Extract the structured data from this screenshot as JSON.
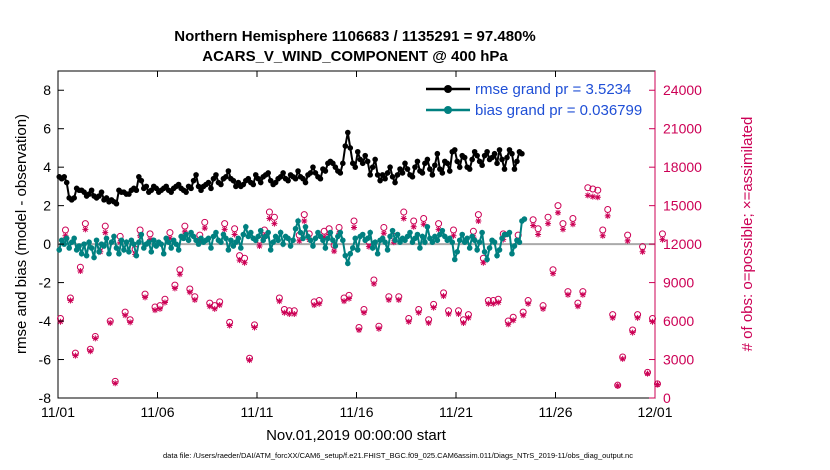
{
  "chart_data": {
    "type": "line",
    "title_line1": "Northern Hemisphere 1106683 / 1135291 = 97.480%",
    "title_line2": "ACARS_V_WIND_COMPONENT @ 400 hPa",
    "xlabel": "Nov.01,2019 00:00:00 start",
    "ylabel": "rmse and bias (model - observation)",
    "y2label": "# of obs: o=possible; ×=assimilated",
    "xlim": [
      0,
      30
    ],
    "ylim": [
      -8,
      9
    ],
    "y2lim": [
      0,
      25500
    ],
    "x_ticks": [
      0,
      5,
      10,
      15,
      20,
      25,
      30
    ],
    "x_tick_labels": [
      "11/01",
      "11/06",
      "11/11",
      "11/16",
      "11/21",
      "11/26",
      "12/01"
    ],
    "y_ticks": [
      -8,
      -6,
      -4,
      -2,
      0,
      2,
      4,
      6,
      8
    ],
    "y_tick_labels": [
      "-8",
      "-6",
      "-4",
      "-2",
      "0",
      "2",
      "4",
      "6",
      "8"
    ],
    "y2_ticks": [
      0,
      3000,
      6000,
      9000,
      12000,
      15000,
      18000,
      21000,
      24000
    ],
    "y2_tick_labels": [
      "0",
      "3000",
      "6000",
      "9000",
      "12000",
      "15000",
      "18000",
      "21000",
      "24000"
    ],
    "legend": [
      {
        "label": "rmse grand pr = 3.5234",
        "color": "#000000"
      },
      {
        "label": "bias grand pr = 0.036799",
        "color": "#008080"
      }
    ],
    "series": [
      {
        "name": "rmse",
        "color": "#000000",
        "step_days": 0.125,
        "values": [
          3.5,
          3.4,
          3.5,
          3.2,
          2.4,
          2.3,
          2.4,
          2.9,
          2.8,
          2.8,
          2.7,
          2.5,
          2.6,
          2.8,
          2.5,
          2.4,
          2.5,
          2.7,
          2.3,
          2.4,
          2.2,
          2.3,
          2.2,
          2.1,
          2.8,
          2.7,
          2.7,
          2.6,
          2.6,
          2.8,
          2.9,
          2.8,
          3.5,
          3.3,
          2.9,
          3.0,
          2.7,
          2.8,
          3.0,
          2.9,
          2.7,
          2.8,
          2.9,
          3.0,
          2.8,
          2.7,
          2.9,
          3.0,
          3.1,
          2.9,
          2.8,
          2.7,
          3.0,
          2.9,
          3.3,
          3.6,
          3.0,
          2.8,
          3.0,
          3.1,
          3.2,
          2.9,
          3.4,
          3.6,
          3.2,
          3.1,
          3.4,
          3.5,
          3.8,
          3.4,
          3.3,
          3.0,
          3.2,
          3.0,
          3.1,
          3.3,
          3.4,
          3.2,
          3.1,
          3.6,
          3.4,
          3.2,
          3.5,
          3.6,
          3.7,
          3.3,
          3.1,
          3.2,
          3.4,
          3.5,
          3.7,
          3.4,
          3.3,
          3.6,
          3.5,
          3.4,
          3.8,
          3.5,
          3.4,
          3.2,
          3.6,
          3.7,
          4.0,
          3.7,
          3.5,
          3.4,
          3.9,
          3.8,
          4.2,
          4.3,
          4.2,
          4.0,
          3.8,
          3.7,
          4.2,
          5.1,
          5.8,
          5.0,
          4.2,
          4.0,
          4.8,
          4.4,
          4.2,
          4.6,
          4.3,
          3.6,
          4.0,
          4.4,
          3.6,
          3.3,
          3.6,
          3.4,
          3.7,
          4.0,
          3.5,
          3.2,
          3.6,
          3.9,
          3.7,
          4.2,
          3.9,
          3.6,
          3.5,
          4.0,
          4.3,
          3.8,
          3.7,
          4.2,
          4.4,
          3.9,
          3.6,
          4.1,
          4.7,
          3.9,
          3.7,
          4.3,
          4.2,
          3.8,
          4.8,
          4.9,
          4.3,
          4.0,
          4.6,
          4.5,
          4.0,
          3.9,
          4.4,
          4.8,
          4.6,
          4.3,
          4.1,
          4.6,
          4.8,
          4.4,
          4.5,
          4.7,
          4.2,
          4.9,
          4.4,
          3.9,
          4.5,
          4.9,
          4.7,
          3.9,
          4.3,
          4.8,
          4.7
        ]
      },
      {
        "name": "bias",
        "color": "#008080",
        "step_days": 0.125,
        "values": [
          -0.3,
          0.2,
          0.0,
          0.3,
          -0.2,
          0.1,
          0.3,
          -0.3,
          -0.1,
          -0.5,
          0.0,
          -0.6,
          0.1,
          -0.2,
          -0.7,
          0.2,
          -0.4,
          0.0,
          -0.1,
          0.3,
          -0.5,
          0.1,
          0.4,
          -0.2,
          -0.5,
          0.2,
          -0.3,
          0.1,
          -0.4,
          0.2,
          0.0,
          -0.6,
          0.1,
          0.5,
          -0.2,
          0.0,
          0.1,
          -0.4,
          0.2,
          -0.1,
          0.1,
          0.0,
          -0.5,
          0.3,
          0.1,
          -0.2,
          0.2,
          0.0,
          -0.3,
          0.4,
          0.3,
          0.5,
          0.2,
          0.6,
          0.4,
          0.2,
          0.0,
          0.3,
          0.1,
          0.2,
          0.3,
          -0.2,
          0.4,
          0.6,
          0.2,
          0.1,
          0.5,
          0.3,
          -0.3,
          0.2,
          -0.1,
          0.1,
          0.3,
          -0.2,
          0.5,
          0.9,
          0.4,
          0.6,
          0.3,
          0.2,
          0.4,
          0.7,
          0.2,
          0.4,
          0.6,
          -0.3,
          0.1,
          0.4,
          0.2,
          0.6,
          0.0,
          0.4,
          0.3,
          -0.1,
          0.2,
          0.8,
          1.2,
          0.6,
          0.3,
          0.9,
          0.4,
          0.2,
          -0.1,
          0.3,
          0.6,
          0.4,
          0.2,
          -0.2,
          0.3,
          0.6,
          0.2,
          -0.1,
          0.4,
          0.6,
          0.2,
          -0.6,
          -1.0,
          -0.5,
          -0.2,
          0.3,
          -0.3,
          0.4,
          0.5,
          0.2,
          0.3,
          0.6,
          -0.2,
          0.1,
          -0.5,
          0.2,
          0.3,
          0.1,
          -0.3,
          0.4,
          0.7,
          0.2,
          0.5,
          0.1,
          0.3,
          0.2,
          0.4,
          0.6,
          0.1,
          0.3,
          0.5,
          -0.2,
          0.4,
          0.1,
          0.9,
          0.3,
          0.1,
          0.4,
          0.2,
          0.5,
          0.7,
          0.4,
          0.2,
          0.3,
          0.1,
          -0.8,
          -0.4,
          0.2,
          0.5,
          0.1,
          0.3,
          -0.2,
          0.4,
          0.2,
          -0.3,
          0.1,
          0.6,
          -0.4,
          -0.8,
          -0.2,
          0.2,
          0.1,
          -0.6,
          -0.3,
          0.3,
          0.5,
          0.5,
          0.6,
          -0.5,
          -0.1,
          0.2,
          0.1,
          1.2,
          1.3
        ]
      }
    ],
    "obs_possible": {
      "step_days": 0.25,
      "values": [
        6200,
        13100,
        7800,
        3500,
        10200,
        13600,
        3800,
        4800,
        11800,
        13400,
        6000,
        1300,
        12600,
        6700,
        6100,
        11600,
        13100,
        8100,
        12800,
        7100,
        7200,
        7700,
        12900,
        8800,
        10000,
        13400,
        8500,
        7900,
        12700,
        13700,
        7400,
        7200,
        7500,
        13600,
        5900,
        13200,
        11100,
        10900,
        3100,
        5700,
        12300,
        13100,
        14500,
        14100,
        7800,
        6900,
        6800,
        6800,
        12700,
        14300,
        12800,
        7500,
        7600,
        13000,
        13200,
        11900,
        13300,
        7800,
        8000,
        13800,
        5500,
        6900,
        12200,
        9200,
        5600,
        13300,
        7900,
        12600,
        7900,
        14500,
        6200,
        13800,
        6900,
        14000,
        6100,
        7300,
        13600,
        8200,
        6800,
        13100,
        6800,
        6100,
        6500,
        13000,
        14300,
        10900,
        7600,
        7600,
        7700,
        12800,
        6000,
        6300,
        12700,
        6700,
        7600,
        13900,
        13200,
        7200,
        14100,
        10000,
        15000,
        13600,
        8300,
        14000,
        7400,
        8300,
        16400,
        16300,
        16200,
        13100,
        14700,
        6500,
        1000,
        3200,
        12700,
        5300,
        6500,
        11800,
        2000,
        6200,
        1100,
        12800
      ]
    },
    "obs_assimilated": {
      "step_days": 0.25,
      "values": [
        5950,
        12650,
        7600,
        3300,
        9900,
        13150,
        3650,
        4650,
        11400,
        12900,
        5850,
        1150,
        12150,
        6450,
        5900,
        11200,
        12650,
        7850,
        12350,
        6850,
        6950,
        7450,
        12450,
        8550,
        9650,
        12950,
        8250,
        7650,
        12250,
        13250,
        7150,
        6950,
        7250,
        13150,
        5650,
        12750,
        10750,
        10550,
        2950,
        5500,
        11850,
        12650,
        14000,
        13600,
        7550,
        6650,
        6550,
        6550,
        12250,
        13800,
        12350,
        7250,
        7350,
        12550,
        12750,
        11450,
        12850,
        7550,
        7750,
        13300,
        5300,
        6650,
        11800,
        8900,
        5400,
        12850,
        7650,
        12150,
        7650,
        14000,
        5950,
        13350,
        6650,
        13550,
        5850,
        7050,
        13150,
        7950,
        6550,
        12650,
        6550,
        5850,
        6250,
        12550,
        13800,
        10550,
        7350,
        7350,
        7450,
        12350,
        5750,
        6050,
        12250,
        6450,
        7350,
        13450,
        12750,
        6950,
        13600,
        9700,
        14450,
        13150,
        8050,
        13550,
        7150,
        8050,
        15800,
        15700,
        15650,
        12650,
        14200,
        6250,
        950,
        3050,
        12250,
        5100,
        6250,
        11400,
        1900,
        5950,
        1050,
        12350
      ]
    }
  },
  "footer": "data file: /Users/raeder/DAI/ATM_forcXX/CAM6_setup/f.e21.FHIST_BGC.f09_025.CAM6assim.011/Diags_NTrS_2019-11/obs_diag_output.nc"
}
